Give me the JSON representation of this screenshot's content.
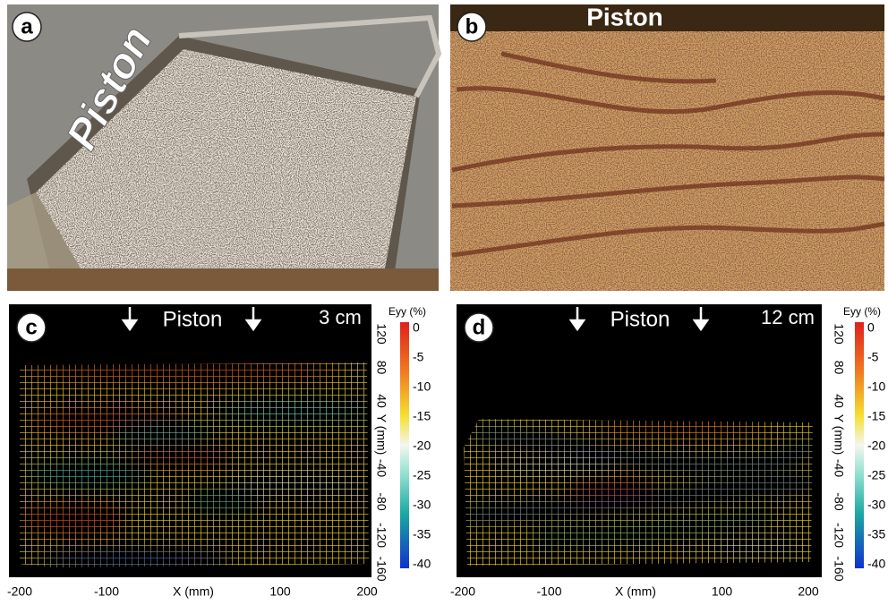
{
  "panels": [
    {
      "label": "a",
      "caption": "Piston"
    },
    {
      "label": "b",
      "caption": "Piston"
    },
    {
      "label": "c",
      "caption": "Piston",
      "displacement": "3 cm",
      "colorbar_title": "Eyy (%)",
      "colorbar_ticks": [
        0,
        -5,
        -10,
        -15,
        -20,
        -25,
        -30,
        -35,
        -40
      ],
      "y_ticks": [
        120,
        80,
        40,
        "Y (mm)",
        -40,
        -80,
        -120,
        -160
      ],
      "x_ticks": [
        -200,
        -100,
        "X (mm)",
        100,
        200
      ]
    },
    {
      "label": "d",
      "caption": "Piston",
      "displacement": "12 cm",
      "colorbar_title": "Eyy (%)",
      "colorbar_ticks": [
        0,
        -5,
        -10,
        -15,
        -20,
        -25,
        -30,
        -35,
        -40
      ],
      "y_ticks": [
        120,
        80,
        40,
        "Y (mm)",
        -40,
        -80,
        -120,
        -160
      ],
      "x_ticks": [
        -200,
        -100,
        "X (mm)",
        100,
        200
      ]
    }
  ]
}
